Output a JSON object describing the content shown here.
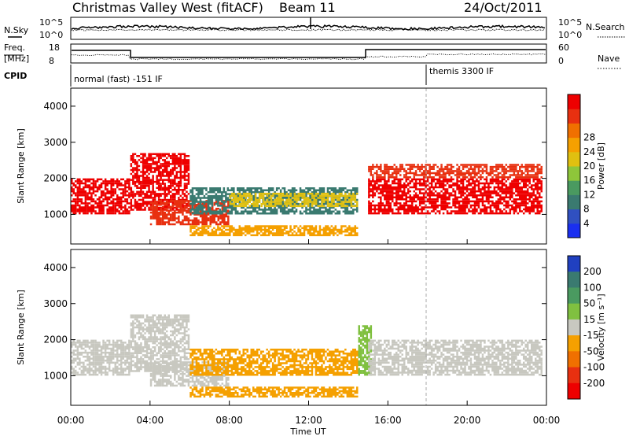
{
  "header": {
    "station": "Christmas Valley West (fitACF)",
    "beam": "Beam 11",
    "date": "24/Oct/2011"
  },
  "top_panels": {
    "nsky_label": "N.Sky",
    "nsearch_label": "N.Search",
    "freq_label_line1": "Freq.",
    "freq_label_line2": "[MHz]",
    "nave_label": "Nave",
    "cpid_label": "CPID",
    "noise_ticks": [
      "10^5",
      "10^0"
    ],
    "freq_ticks": [
      "18",
      "8"
    ],
    "nave_ticks": [
      "60",
      "0"
    ],
    "cpid_mode_1": "normal (fast) -151 IF",
    "cpid_mode_2": "themis 3300 IF"
  },
  "chart_data": [
    {
      "type": "heatmap",
      "panel": "power",
      "ylabel": "Slant Range [km]",
      "xlabel": "Time UT",
      "x_ticks": [
        "00:00",
        "04:00",
        "08:00",
        "12:00",
        "16:00",
        "20:00",
        "00:00"
      ],
      "y_ticks": [
        "1000",
        "2000",
        "3000",
        "4000"
      ],
      "xlim_hours": [
        0,
        24
      ],
      "ylim_km": [
        180,
        4500
      ],
      "colorbar": {
        "label": "Power [dB]",
        "ticks": [
          "4",
          "8",
          "12",
          "16",
          "20",
          "24",
          "28"
        ],
        "colors": [
          "#1a2ff0",
          "#3050c0",
          "#3a7a70",
          "#4a9a60",
          "#8ec63a",
          "#e0c010",
          "#f5a000",
          "#f07000",
          "#e83010",
          "#ee0000"
        ]
      },
      "scatter_regions": [
        {
          "t0": 0.0,
          "t1": 3.0,
          "r0": 1000,
          "r1": 2000,
          "color": "#ee0000"
        },
        {
          "t0": 3.0,
          "t1": 6.0,
          "r0": 1100,
          "r1": 2700,
          "color": "#ee0000"
        },
        {
          "t0": 4.0,
          "t1": 8.0,
          "r0": 700,
          "r1": 1400,
          "color": "#e83010"
        },
        {
          "t0": 6.0,
          "t1": 14.5,
          "r0": 1000,
          "r1": 1750,
          "color": "#3a7a70"
        },
        {
          "t0": 8.0,
          "t1": 14.5,
          "r0": 1200,
          "r1": 1600,
          "color": "#e0c010"
        },
        {
          "t0": 6.0,
          "t1": 14.5,
          "r0": 400,
          "r1": 700,
          "color": "#f5a000"
        },
        {
          "t0": 15.0,
          "t1": 23.8,
          "r0": 1000,
          "r1": 2000,
          "color": "#ee0000"
        },
        {
          "t0": 15.0,
          "t1": 23.8,
          "r0": 2000,
          "r1": 2400,
          "color": "#e83010"
        }
      ]
    },
    {
      "type": "heatmap",
      "panel": "velocity",
      "ylabel": "Slant Range [km]",
      "xlabel": "Time UT",
      "x_ticks": [
        "00:00",
        "04:00",
        "08:00",
        "12:00",
        "16:00",
        "20:00",
        "00:00"
      ],
      "y_ticks": [
        "1000",
        "2000",
        "3000",
        "4000"
      ],
      "xlim_hours": [
        0,
        24
      ],
      "ylim_km": [
        180,
        4500
      ],
      "colorbar": {
        "label": "Velocity [m s⁻¹]",
        "ticks": [
          "200",
          "100",
          "50",
          "15",
          "-15",
          "-50",
          "-100",
          "-200"
        ],
        "colors": [
          "#2040c0",
          "#3a7a70",
          "#4a9a60",
          "#80c040",
          "#c8c8c0",
          "#f5a000",
          "#f07000",
          "#e83010",
          "#ee0000"
        ]
      },
      "scatter_regions": [
        {
          "t0": 0.0,
          "t1": 3.0,
          "r0": 1000,
          "r1": 2000,
          "color": "#c8c8c0"
        },
        {
          "t0": 3.0,
          "t1": 6.0,
          "r0": 1100,
          "r1": 2700,
          "color": "#c8c8c0"
        },
        {
          "t0": 4.0,
          "t1": 8.0,
          "r0": 700,
          "r1": 1400,
          "color": "#c8c8c0"
        },
        {
          "t0": 6.0,
          "t1": 14.5,
          "r0": 1000,
          "r1": 1750,
          "color": "#f5a000"
        },
        {
          "t0": 6.0,
          "t1": 14.5,
          "r0": 400,
          "r1": 700,
          "color": "#f5a000"
        },
        {
          "t0": 14.5,
          "t1": 15.2,
          "r0": 1000,
          "r1": 2400,
          "color": "#80c040"
        },
        {
          "t0": 15.0,
          "t1": 23.8,
          "r0": 1000,
          "r1": 2000,
          "color": "#c8c8c0"
        }
      ]
    }
  ]
}
